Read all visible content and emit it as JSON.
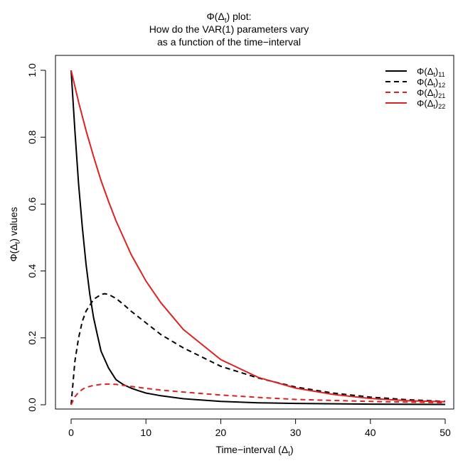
{
  "chart_data": {
    "type": "line",
    "title_lines": [
      "Φ(Δ",
      "How do the VAR(1) parameters vary",
      "as a function of the time−interval"
    ],
    "title_first_line_sub": "t",
    "title_first_line_tail": ") plot:",
    "xlabel": "Time−interval (Δ",
    "xlabel_sub": "t",
    "xlabel_tail": ")",
    "ylabel": "Φ(Δ",
    "ylabel_sub": "t",
    "ylabel_tail": ") values",
    "xlim": [
      0,
      50
    ],
    "ylim": [
      0,
      1
    ],
    "x_ticks": [
      0,
      10,
      20,
      30,
      40,
      50
    ],
    "y_ticks": [
      0.0,
      0.2,
      0.4,
      0.6,
      0.8,
      1.0
    ],
    "y_tick_labels": [
      "0.0",
      "0.2",
      "0.4",
      "0.6",
      "0.8",
      "1.0"
    ],
    "x_tick_labels": [
      "0",
      "10",
      "20",
      "30",
      "40",
      "50"
    ],
    "legend_position": "top-right",
    "grid": false,
    "series": [
      {
        "name": "Φ(Δt)11",
        "legend_main": "Φ(Δ",
        "legend_sub": "t",
        "legend_tail": ")",
        "legend_index": "11",
        "color": "#000000",
        "dash": "solid",
        "x": [
          0,
          0.5,
          1,
          1.5,
          2,
          2.5,
          3,
          3.5,
          4,
          5,
          6,
          7,
          8,
          9,
          10,
          12,
          15,
          20,
          25,
          30,
          40,
          50
        ],
        "y": [
          1.0,
          0.82,
          0.66,
          0.53,
          0.42,
          0.33,
          0.26,
          0.21,
          0.16,
          0.11,
          0.075,
          0.06,
          0.05,
          0.042,
          0.035,
          0.027,
          0.018,
          0.01,
          0.006,
          0.004,
          0.002,
          0.001
        ]
      },
      {
        "name": "Φ(Δt)12",
        "legend_main": "Φ(Δ",
        "legend_sub": "t",
        "legend_tail": ")",
        "legend_index": "12",
        "color": "#000000",
        "dash": "dashed",
        "x": [
          0,
          0.5,
          1,
          1.5,
          2,
          3,
          4,
          4.5,
          5,
          6,
          7,
          8,
          10,
          12,
          15,
          20,
          25,
          30,
          35,
          40,
          45,
          50
        ],
        "y": [
          0.0,
          0.13,
          0.2,
          0.25,
          0.28,
          0.315,
          0.33,
          0.332,
          0.33,
          0.318,
          0.3,
          0.28,
          0.245,
          0.21,
          0.17,
          0.115,
          0.08,
          0.053,
          0.035,
          0.023,
          0.015,
          0.01
        ]
      },
      {
        "name": "Φ(Δt)21",
        "legend_main": "Φ(Δ",
        "legend_sub": "t",
        "legend_tail": ")",
        "legend_index": "21",
        "color": "#dd2222",
        "dash": "dashed",
        "x": [
          0,
          0.5,
          1,
          1.5,
          2,
          3,
          4,
          5,
          6,
          7,
          8,
          10,
          12,
          15,
          20,
          25,
          30,
          40,
          50
        ],
        "y": [
          0.0,
          0.024,
          0.037,
          0.046,
          0.052,
          0.058,
          0.061,
          0.062,
          0.061,
          0.058,
          0.055,
          0.049,
          0.044,
          0.038,
          0.029,
          0.022,
          0.016,
          0.01,
          0.006
        ]
      },
      {
        "name": "Φ(Δt)22",
        "legend_main": "Φ(Δ",
        "legend_sub": "t",
        "legend_tail": ")",
        "legend_index": "22",
        "color": "#dd2222",
        "dash": "solid",
        "x": [
          0,
          1,
          2,
          3,
          4,
          5,
          6,
          8,
          10,
          12,
          15,
          20,
          25,
          30,
          35,
          40,
          45,
          50
        ],
        "y": [
          1.0,
          0.905,
          0.82,
          0.742,
          0.67,
          0.608,
          0.55,
          0.45,
          0.37,
          0.305,
          0.225,
          0.135,
          0.082,
          0.05,
          0.031,
          0.019,
          0.012,
          0.009
        ]
      }
    ]
  }
}
